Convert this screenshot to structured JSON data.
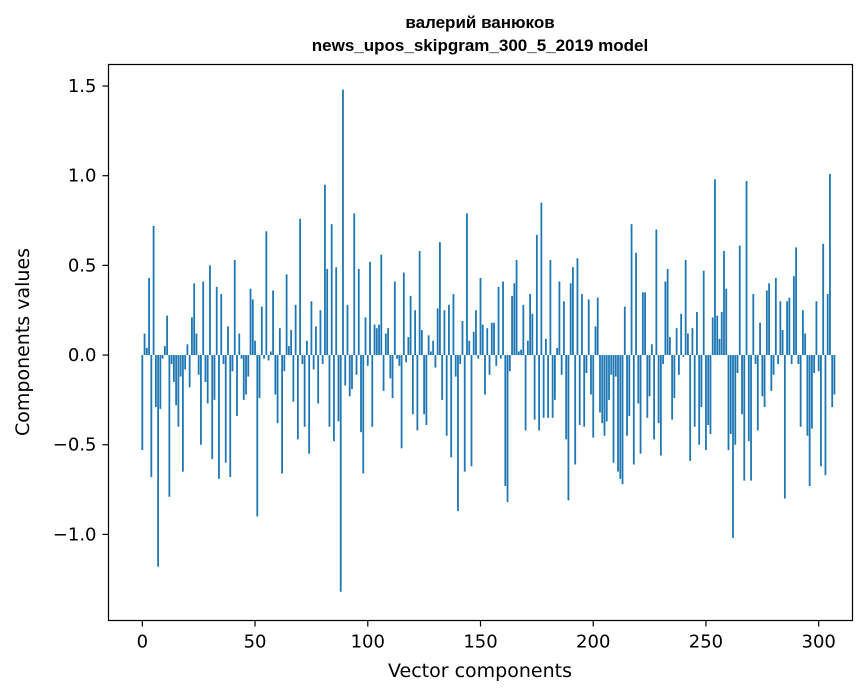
{
  "chart_data": {
    "type": "bar",
    "title_line1": "валерий ванюков",
    "title_line2": "news_upos_skipgram_300_5_2019 model",
    "xlabel": "Vector components",
    "ylabel": "Components values",
    "xlim": [
      -15,
      315
    ],
    "ylim": [
      -1.48,
      1.62
    ],
    "x_ticks": [
      0,
      50,
      100,
      150,
      200,
      250,
      300
    ],
    "x_tick_labels": [
      "0",
      "50",
      "100",
      "150",
      "200",
      "250",
      "300"
    ],
    "y_ticks": [
      -1.0,
      -0.5,
      0.0,
      0.5,
      1.0,
      1.5
    ],
    "y_tick_labels": [
      "−1.0",
      "−0.5",
      "0.0",
      "0.5",
      "1.0",
      "1.5"
    ],
    "bar_color": "#1f77b4",
    "grid": false,
    "values": [
      -0.53,
      0.12,
      0.04,
      0.43,
      -0.68,
      0.72,
      -0.29,
      -1.18,
      -0.3,
      -0.02,
      0.05,
      0.22,
      -0.79,
      -0.05,
      -0.15,
      -0.28,
      -0.4,
      -0.12,
      -0.65,
      -0.08,
      0.06,
      -0.18,
      0.21,
      0.4,
      0.12,
      -0.11,
      -0.5,
      0.41,
      -0.15,
      -0.27,
      0.5,
      -0.58,
      -0.25,
      0.38,
      -0.69,
      0.34,
      -0.05,
      -0.6,
      0.16,
      -0.68,
      -0.09,
      0.53,
      -0.34,
      0.12,
      -0.02,
      -0.25,
      -0.22,
      -0.12,
      0.37,
      0.31,
      0.08,
      -0.9,
      -0.24,
      0.27,
      -0.02,
      0.69,
      -0.03,
      0.02,
      0.36,
      -0.22,
      -0.38,
      0.15,
      -0.66,
      -0.09,
      0.45,
      0.05,
      0.14,
      -0.26,
      0.28,
      -0.47,
      0.76,
      -0.05,
      -0.4,
      0.08,
      -0.55,
      0.3,
      -0.08,
      0.16,
      -0.27,
      0.25,
      -0.05,
      0.95,
      0.48,
      -0.4,
      0.73,
      -0.48,
      0.49,
      -0.37,
      -1.32,
      1.48,
      -0.17,
      0.28,
      -0.23,
      -0.19,
      0.79,
      -0.11,
      0.48,
      -0.43,
      -0.66,
      0.21,
      -0.06,
      0.52,
      -0.4,
      0.17,
      0.15,
      0.17,
      0.56,
      -0.2,
      0.12,
      0.15,
      -0.13,
      -0.24,
      0.41,
      -0.02,
      -0.06,
      -0.52,
      0.46,
      -0.04,
      0.1,
      0.33,
      -0.33,
      0.25,
      -0.42,
      0.58,
      0.14,
      -0.33,
      -0.39,
      0.11,
      0.02,
      0.08,
      -0.07,
      0.26,
      0.63,
      -0.25,
      0.25,
      -0.45,
      0.28,
      -0.57,
      0.34,
      -0.12,
      -0.87,
      -0.05,
      0.19,
      -0.65,
      0.79,
      0.08,
      -0.62,
      0.13,
      0.25,
      -0.02,
      0.43,
      0.17,
      -0.22,
      0.15,
      -0.11,
      0.18,
      0.18,
      -0.06,
      0.38,
      -0.02,
      0.41,
      -0.73,
      -0.82,
      -0.09,
      0.33,
      0.4,
      0.53,
      0.02,
      0.03,
      0.28,
      -0.42,
      0.08,
      0.34,
      0.23,
      -0.36,
      0.67,
      -0.42,
      0.85,
      -0.35,
      0.09,
      -0.35,
      0.53,
      -0.35,
      -0.25,
      0.04,
      0.41,
      -0.11,
      0.3,
      -0.47,
      -0.81,
      0.4,
      0.49,
      -0.61,
      0.54,
      -0.39,
      0.34,
      -0.4,
      -0.1,
      0.31,
      -0.22,
      -0.46,
      0.16,
      0.32,
      -0.32,
      -0.38,
      -0.45,
      -0.37,
      -0.25,
      -0.11,
      -0.6,
      -0.12,
      -0.65,
      -0.69,
      -0.72,
      0.27,
      -0.45,
      -0.34,
      0.73,
      -0.61,
      0.57,
      -0.27,
      -0.55,
      0.35,
      0.35,
      -0.35,
      -0.23,
      0.06,
      -0.47,
      0.7,
      -0.38,
      -0.56,
      -0.05,
      0.41,
      0.48,
      0.1,
      -0.36,
      -0.24,
      0.15,
      -0.11,
      0.23,
      -0.01,
      0.53,
      0.12,
      -0.59,
      0.15,
      -0.4,
      0.24,
      -0.5,
      -0.29,
      0.47,
      -0.53,
      -0.39,
      -0.44,
      0.21,
      0.98,
      0.22,
      0.09,
      0.24,
      0.58,
      0.37,
      -0.53,
      -0.44,
      -1.02,
      -0.5,
      -0.1,
      0.61,
      -0.33,
      -0.7,
      0.97,
      -0.48,
      -0.7,
      0.34,
      -0.05,
      -0.42,
      0.18,
      -0.23,
      -0.29,
      0.36,
      0.4,
      -0.2,
      -0.11,
      0.43,
      -0.05,
      0.3,
      0.14,
      -0.8,
      0.3,
      0.32,
      -0.05,
      0.44,
      0.6,
      -0.05,
      -0.4,
      0.25,
      0.12,
      -0.45,
      -0.73,
      -0.41,
      -0.1,
      0.3,
      -0.09,
      -0.62,
      0.62,
      -0.67,
      0.34,
      1.01,
      -0.29,
      -0.22
    ]
  }
}
